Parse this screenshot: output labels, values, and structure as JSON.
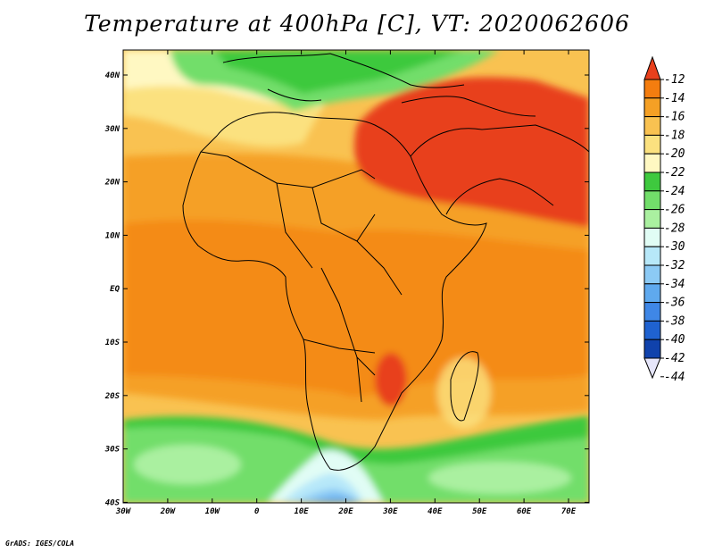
{
  "title": "Temperature at 400hPa [C], VT: 2020062606",
  "credit": "GrADS: IGES/COLA",
  "lat_ticks": [
    "40N",
    "30N",
    "20N",
    "10N",
    "EQ",
    "10S",
    "20S",
    "30S",
    "40S"
  ],
  "lon_ticks": [
    "30W",
    "20W",
    "10W",
    "0",
    "10E",
    "20E",
    "30E",
    "40E",
    "50E",
    "60E",
    "70E"
  ],
  "colorbar": {
    "labels": [
      "-12",
      "-14",
      "-16",
      "-18",
      "-20",
      "-22",
      "-24",
      "-26",
      "-28",
      "-30",
      "-32",
      "-34",
      "-36",
      "-38",
      "-40",
      "-42",
      "-44"
    ],
    "colors": [
      "#e8401c",
      "#f47d0f",
      "#f5a025",
      "#f9c251",
      "#fbe17f",
      "#fff8c2",
      "#3ec93e",
      "#72de6a",
      "#aaf0a0",
      "#e1fdf5",
      "#b7e8f9",
      "#8ccaf5",
      "#5fa9ee",
      "#3f87e6",
      "#1f62d0",
      "#1042ac",
      "#0a1a6c"
    ]
  }
}
